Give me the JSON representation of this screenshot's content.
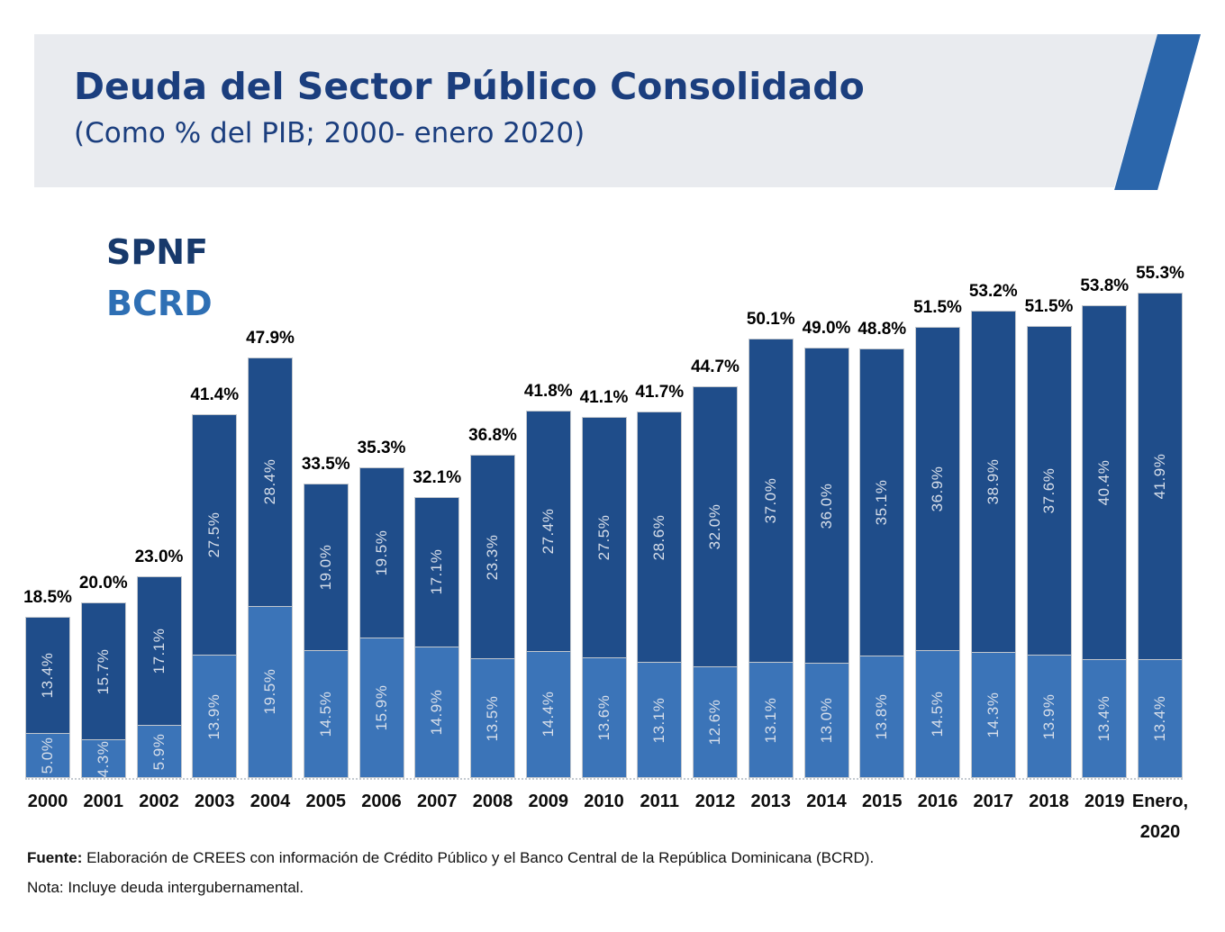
{
  "header": {
    "title": "Deuda del Sector Público Consolidado",
    "subtitle": "(Como % del PIB; 2000- enero 2020)"
  },
  "legend": {
    "spnf_label": "SPNF",
    "bcrd_label": "BCRD"
  },
  "footer": {
    "source_label": "Fuente:",
    "source_text": "Elaboración de CREES con información de Crédito Público y el Banco Central de la República Dominicana (BCRD).",
    "note": "Nota: Incluye deuda intergubernamental."
  },
  "colors": {
    "spnf_fill": "#1f4d8a",
    "bcrd_fill": "#3b74b8",
    "title_text": "#1b3e7e",
    "legend_spnf_text": "#17396b",
    "legend_bcrd_text": "#2e6fb4",
    "header_band": "#e9ebef",
    "header_slash": "#2b66ab",
    "total_label_text": "#000000",
    "segment_label_text": "#d8dfea"
  },
  "chart_data": {
    "type": "bar",
    "stacked": true,
    "title": "Deuda del Sector Público Consolidado",
    "subtitle": "(Como % del PIB; 2000- enero 2020)",
    "value_unit": "% del PIB",
    "grid": false,
    "legend_position": "top-left",
    "ylim": [
      0,
      60
    ],
    "categories": [
      "2000",
      "2001",
      "2002",
      "2003",
      "2004",
      "2005",
      "2006",
      "2007",
      "2008",
      "2009",
      "2010",
      "2011",
      "2012",
      "2013",
      "2014",
      "2015",
      "2016",
      "2017",
      "2018",
      "2019",
      "Enero,\n2020"
    ],
    "series": [
      {
        "name": "SPNF",
        "stack_position": "top",
        "color": "#1f4d8a",
        "values": [
          13.4,
          15.7,
          17.1,
          27.5,
          28.4,
          19.0,
          19.5,
          17.1,
          23.3,
          27.4,
          27.5,
          28.6,
          32.0,
          37.0,
          36.0,
          35.1,
          36.9,
          38.9,
          37.6,
          40.4,
          41.9
        ],
        "labels": [
          "13.4%",
          "15.7%",
          "17.1%",
          "27.5%",
          "28.4%",
          "19.0%",
          "19.5%",
          "17.1%",
          "23.3%",
          "27.4%",
          "27.5%",
          "28.6%",
          "32.0%",
          "37.0%",
          "36.0%",
          "35.1%",
          "36.9%",
          "38.9%",
          "37.6%",
          "40.4%",
          "41.9%"
        ]
      },
      {
        "name": "BCRD",
        "stack_position": "bottom",
        "color": "#3b74b8",
        "values": [
          5.0,
          4.3,
          5.9,
          13.9,
          19.5,
          14.5,
          15.9,
          14.9,
          13.5,
          14.4,
          13.6,
          13.1,
          12.6,
          13.1,
          13.0,
          13.8,
          14.5,
          14.3,
          13.9,
          13.4,
          13.4
        ],
        "labels": [
          "5.0%",
          "4.3%",
          "5.9%",
          "13.9%",
          "19.5%",
          "14.5%",
          "15.9%",
          "14.9%",
          "13.5%",
          "14.4%",
          "13.6%",
          "13.1%",
          "12.6%",
          "13.1%",
          "13.0%",
          "13.8%",
          "14.5%",
          "14.3%",
          "13.9%",
          "13.4%",
          "13.4%"
        ]
      }
    ],
    "totals": [
      "18.5%",
      "20.0%",
      "23.0%",
      "41.4%",
      "47.9%",
      "33.5%",
      "35.3%",
      "32.1%",
      "36.8%",
      "41.8%",
      "41.1%",
      "41.7%",
      "44.7%",
      "50.1%",
      "49.0%",
      "48.8%",
      "51.5%",
      "53.2%",
      "51.5%",
      "53.8%",
      "55.3%"
    ]
  }
}
